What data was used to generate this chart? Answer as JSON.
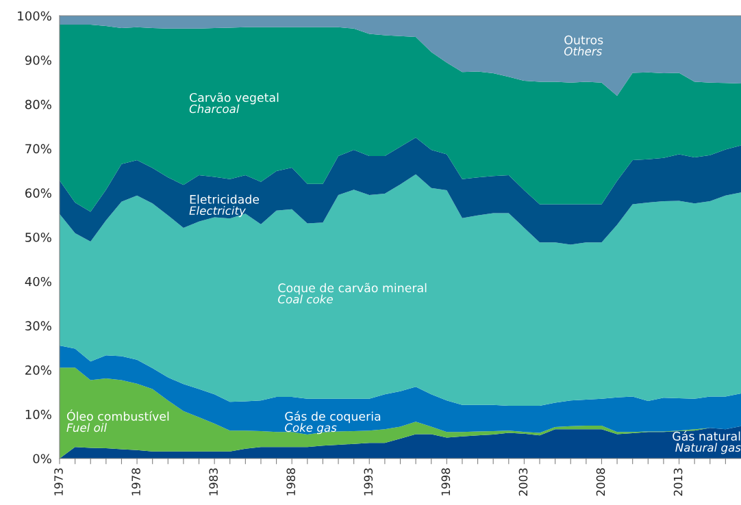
{
  "chart_data": {
    "type": "area",
    "stacked": true,
    "legend": false,
    "grid": false,
    "x": [
      1973,
      1974,
      1975,
      1976,
      1977,
      1978,
      1979,
      1980,
      1981,
      1982,
      1983,
      1984,
      1985,
      1986,
      1987,
      1988,
      1989,
      1990,
      1991,
      1992,
      1993,
      1994,
      1995,
      1996,
      1997,
      1998,
      1999,
      2000,
      2001,
      2002,
      2003,
      2004,
      2005,
      2006,
      2007,
      2008,
      2009,
      2010,
      2011,
      2012,
      2013,
      2014,
      2015,
      2016,
      2017
    ],
    "xlim": [
      1973,
      2017
    ],
    "xticks": [
      1973,
      {
        "value": 1974,
        "label": null
      },
      {
        "value": 1975,
        "label": null
      },
      {
        "value": 1976,
        "label": null
      },
      {
        "value": 1977,
        "label": null
      },
      1978,
      {
        "value": 1979,
        "label": null
      },
      {
        "value": 1980,
        "label": null
      },
      {
        "value": 1981,
        "label": null
      },
      {
        "value": 1982,
        "label": null
      },
      1983,
      {
        "value": 1984,
        "label": null
      },
      {
        "value": 1985,
        "label": null
      },
      {
        "value": 1986,
        "label": null
      },
      {
        "value": 1987,
        "label": null
      },
      1988,
      {
        "value": 1989,
        "label": null
      },
      {
        "value": 1990,
        "label": null
      },
      {
        "value": 1991,
        "label": null
      },
      {
        "value": 1992,
        "label": null
      },
      1993,
      {
        "value": 1994,
        "label": null
      },
      {
        "value": 1995,
        "label": null
      },
      {
        "value": 1996,
        "label": null
      },
      {
        "value": 1997,
        "label": null
      },
      1998,
      {
        "value": 1999,
        "label": null
      },
      {
        "value": 2000,
        "label": null
      },
      {
        "value": 2001,
        "label": null
      },
      {
        "value": 2002,
        "label": null
      },
      2003,
      {
        "value": 2004,
        "label": null
      },
      {
        "value": 2005,
        "label": null
      },
      {
        "value": 2006,
        "label": null
      },
      {
        "value": 2007,
        "label": null
      },
      2008,
      {
        "value": 2009,
        "label": null
      },
      {
        "value": 2010,
        "label": null
      },
      {
        "value": 2011,
        "label": null
      },
      {
        "value": 2012,
        "label": null
      },
      2013,
      {
        "value": 2014,
        "label": null
      },
      {
        "value": 2015,
        "label": null
      },
      {
        "value": 2016,
        "label": null
      }
    ],
    "ylim": [
      0,
      100
    ],
    "yticks": [
      {
        "value": 0,
        "label": "0%"
      },
      {
        "value": 10,
        "label": "10%"
      },
      {
        "value": 20,
        "label": "20%"
      },
      {
        "value": 30,
        "label": "30%"
      },
      {
        "value": 40,
        "label": "40%"
      },
      {
        "value": 50,
        "label": "50%"
      },
      {
        "value": 60,
        "label": "60%"
      },
      {
        "value": 70,
        "label": "70%"
      },
      {
        "value": 80,
        "label": "80%"
      },
      {
        "value": 90,
        "label": "90%"
      },
      {
        "value": 100,
        "label": "100%"
      }
    ],
    "series": [
      {
        "name": "Gás natural\nNatural gas",
        "color": "#00468b",
        "values": [
          0,
          2.6,
          2.4,
          2.3,
          2.1,
          1.9,
          1.6,
          1.6,
          1.6,
          1.6,
          1.6,
          1.6,
          2.2,
          2.6,
          2.6,
          2.6,
          2.6,
          2.9,
          3.1,
          3.3,
          3.5,
          3.5,
          4.5,
          5.5,
          5.5,
          4.7,
          5.0,
          5.2,
          5.4,
          5.8,
          5.6,
          5.2,
          6.6,
          6.6,
          6.6,
          6.6,
          5.5,
          5.7,
          6.0,
          6.0,
          6.2,
          6.3,
          6.9,
          6.6,
          7.3
        ]
      },
      {
        "name": "Óleo combustível\nFuel oil",
        "color": "#62b946",
        "values": [
          20.5,
          17.9,
          15.3,
          15.8,
          15.6,
          15.0,
          14.1,
          11.5,
          9.1,
          7.7,
          6.3,
          4.7,
          4.1,
          3.6,
          3.4,
          3.4,
          2.8,
          3.0,
          3.0,
          2.9,
          2.8,
          3.1,
          2.7,
          2.8,
          1.7,
          1.3,
          1.0,
          0.9,
          0.8,
          0.5,
          0.4,
          0.6,
          0.5,
          0.7,
          0.8,
          0.8,
          0.5,
          0.3,
          0.1,
          0.1,
          0.1,
          0.3,
          0.0,
          0.0,
          0.0
        ]
      },
      {
        "name": "Gás de coqueria\nCoke gas",
        "color": "#0075bf",
        "values": [
          5.0,
          4.3,
          4.2,
          5.2,
          5.4,
          5.4,
          4.7,
          5.2,
          6.1,
          6.4,
          6.6,
          6.5,
          6.6,
          6.9,
          7.9,
          7.9,
          8.1,
          7.6,
          7.4,
          7.3,
          7.2,
          7.9,
          8.0,
          7.9,
          7.3,
          7.1,
          6.1,
          6.0,
          5.9,
          5.6,
          5.9,
          6.1,
          5.5,
          5.8,
          5.9,
          6.1,
          7.8,
          8.0,
          6.9,
          7.6,
          7.3,
          6.9,
          7.1,
          7.4,
          7.4
        ]
      },
      {
        "name": "Coque de carvão mineral\nCoal coke",
        "color": "#45bfb4",
        "values": [
          29.7,
          26.1,
          27.1,
          30.5,
          34.9,
          37.1,
          37.2,
          36.6,
          35.3,
          37.8,
          40.0,
          41.4,
          42.4,
          39.8,
          42.1,
          42.4,
          39.6,
          39.8,
          46.0,
          47.2,
          46.0,
          45.3,
          46.7,
          48.0,
          46.6,
          47.5,
          42.2,
          42.8,
          43.3,
          43.5,
          40.2,
          36.9,
          36.2,
          35.2,
          35.5,
          35.3,
          39.0,
          43.4,
          44.8,
          44.4,
          44.6,
          44.1,
          44.1,
          45.4,
          45.4
        ]
      },
      {
        "name": "Eletricidade\nElectricity",
        "color": "#005289",
        "values": [
          7.6,
          6.9,
          6.7,
          6.9,
          8.5,
          8.0,
          8.0,
          8.6,
          9.7,
          10.5,
          9.1,
          8.9,
          8.7,
          9.6,
          8.9,
          9.4,
          8.9,
          8.7,
          8.8,
          9.0,
          8.8,
          8.5,
          8.5,
          8.3,
          8.6,
          8.1,
          8.8,
          8.6,
          8.4,
          8.6,
          8.5,
          8.6,
          8.6,
          9.1,
          8.6,
          8.6,
          9.9,
          10.0,
          9.8,
          9.8,
          10.5,
          10.4,
          10.4,
          10.4,
          10.6
        ]
      },
      {
        "name": "Carvão vegetal\nCharcoal",
        "color": "#00957c",
        "values": [
          35.2,
          40.2,
          42.3,
          37.0,
          30.7,
          30.0,
          31.6,
          33.6,
          35.3,
          33.1,
          33.6,
          34.2,
          33.4,
          34.9,
          32.5,
          31.7,
          35.4,
          35.4,
          29.1,
          27.4,
          27.6,
          27.3,
          25.0,
          22.7,
          22.1,
          20.7,
          24.2,
          23.9,
          23.2,
          22.2,
          24.7,
          27.7,
          27.7,
          27.5,
          27.7,
          27.5,
          19.2,
          19.7,
          19.6,
          19.1,
          18.4,
          17.1,
          16.4,
          15.0,
          14.0
        ]
      },
      {
        "name": "Outros\nOthers",
        "color": "#6394b3",
        "values": [
          2.0,
          2.0,
          2.0,
          2.3,
          2.8,
          2.6,
          2.8,
          2.9,
          2.9,
          2.9,
          2.8,
          2.7,
          2.6,
          2.6,
          2.6,
          2.6,
          2.6,
          2.6,
          2.6,
          2.9,
          4.1,
          4.4,
          4.6,
          4.8,
          8.2,
          10.6,
          12.7,
          12.6,
          13.0,
          13.8,
          14.7,
          14.9,
          14.9,
          15.1,
          14.9,
          15.1,
          18.1,
          12.9,
          12.8,
          13.0,
          12.9,
          14.9,
          15.1,
          15.2,
          15.3
        ]
      }
    ]
  }
}
